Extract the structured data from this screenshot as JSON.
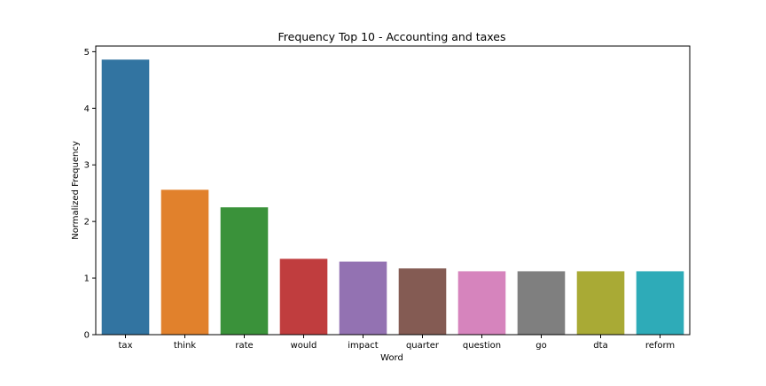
{
  "chart_data": {
    "type": "bar",
    "title": "Frequency Top 10 - Accounting and taxes",
    "xlabel": "Word",
    "ylabel": "Normalized Frequency",
    "categories": [
      "tax",
      "think",
      "rate",
      "would",
      "impact",
      "quarter",
      "question",
      "go",
      "dta",
      "reform"
    ],
    "values": [
      4.86,
      2.56,
      2.25,
      1.34,
      1.29,
      1.17,
      1.12,
      1.12,
      1.12,
      1.12
    ],
    "colors": [
      "#3274a1",
      "#e1812c",
      "#3a923a",
      "#c03d3e",
      "#9372b2",
      "#845b53",
      "#d684bd",
      "#7f7f7f",
      "#a9aa35",
      "#2eabb8"
    ],
    "ylim": [
      0,
      5.1
    ],
    "yticks": [
      "0",
      "1",
      "2",
      "3",
      "4",
      "5"
    ],
    "grid": false,
    "legend": "none"
  }
}
